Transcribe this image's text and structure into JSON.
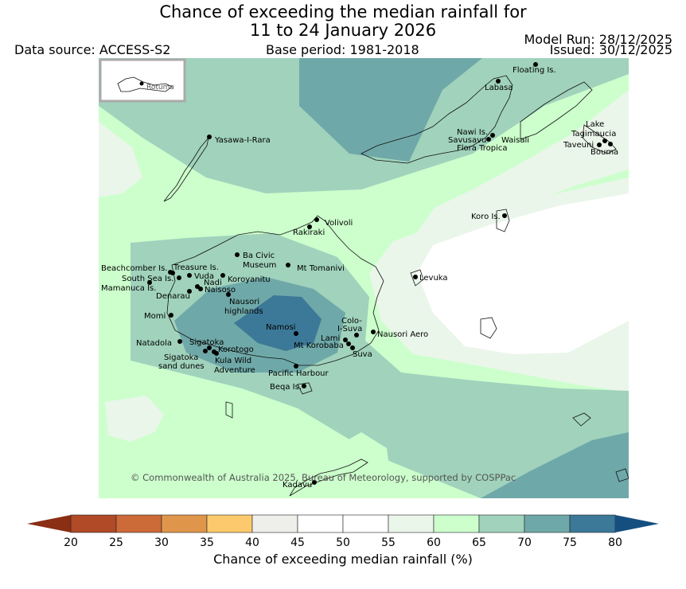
{
  "title": {
    "line1": "Chance of exceeding the median rainfall for",
    "line2": "11 to 24 January 2026"
  },
  "data_source": "Data source: ACCESS-S2",
  "base_period": "Base period: 1981-2018",
  "model_run": "Model Run: 28/12/2025",
  "issued": "Issued: 30/12/2025",
  "inset_label": "Rotuma",
  "copyright": "© Commonwealth of Australia 2025, Bureau of Meteorology, supported by COSPPac",
  "colors": {
    "p55_60": "#eaf6ea",
    "p60_65": "#ccffcc",
    "p65_70": "#a0d2bc",
    "p70_75": "#6fa8a8",
    "p75_80": "#3c7897",
    "white": "#ffffff"
  },
  "places": [
    {
      "name": "Floating Is."
    },
    {
      "name": "Labasa"
    },
    {
      "name": "Yasawa-I-Rara"
    },
    {
      "name": "Nawi Is."
    },
    {
      "name": "Savusavu"
    },
    {
      "name": "Waisali"
    },
    {
      "name": "Flora Tropica"
    },
    {
      "name": "Lake"
    },
    {
      "name": "Tagimaucia"
    },
    {
      "name": "Taveuni"
    },
    {
      "name": "Bouma"
    },
    {
      "name": "Koro Is."
    },
    {
      "name": "Volivoli"
    },
    {
      "name": "Rakiraki"
    },
    {
      "name": "Ba Civic"
    },
    {
      "name": "Museum"
    },
    {
      "name": "Mt Tomanivi"
    },
    {
      "name": "Levuka"
    },
    {
      "name": "Beachcomber Is."
    },
    {
      "name": "Treasure Is."
    },
    {
      "name": "South Sea Is."
    },
    {
      "name": "Vuda"
    },
    {
      "name": "Koroyanitu"
    },
    {
      "name": "Nadi"
    },
    {
      "name": "Mamanuca Is."
    },
    {
      "name": "Naisoso"
    },
    {
      "name": "Denarau"
    },
    {
      "name": "Nausori"
    },
    {
      "name": "highlands"
    },
    {
      "name": "Momi"
    },
    {
      "name": "Namosi"
    },
    {
      "name": "Colo-"
    },
    {
      "name": "I-Suva"
    },
    {
      "name": "Nausori Aero"
    },
    {
      "name": "Natadola"
    },
    {
      "name": "Sigatoka"
    },
    {
      "name": "Lami"
    },
    {
      "name": "Mt Korobaba"
    },
    {
      "name": "Korotogo"
    },
    {
      "name": "Suva"
    },
    {
      "name": "Sigatoka"
    },
    {
      "name": "sand dunes"
    },
    {
      "name": "Kula Wild"
    },
    {
      "name": "Adventure"
    },
    {
      "name": "Pacific Harbour"
    },
    {
      "name": "Beqa Is."
    },
    {
      "name": "Kadavu"
    }
  ],
  "colorbar": {
    "ticks": [
      "20",
      "25",
      "30",
      "35",
      "40",
      "45",
      "50",
      "55",
      "60",
      "65",
      "70",
      "75",
      "80"
    ],
    "colors": [
      "#b04a27",
      "#cc6a38",
      "#e0964a",
      "#fcca6c",
      "#eeeeea",
      "#ffffff",
      "#ffffff",
      "#eaf6ea",
      "#ccffcc",
      "#a0d2bc",
      "#6fa8a8",
      "#3c7897"
    ],
    "under_color": "#8a2e14",
    "over_color": "#154f80",
    "label": "Chance of exceeding median rainfall (%)"
  }
}
